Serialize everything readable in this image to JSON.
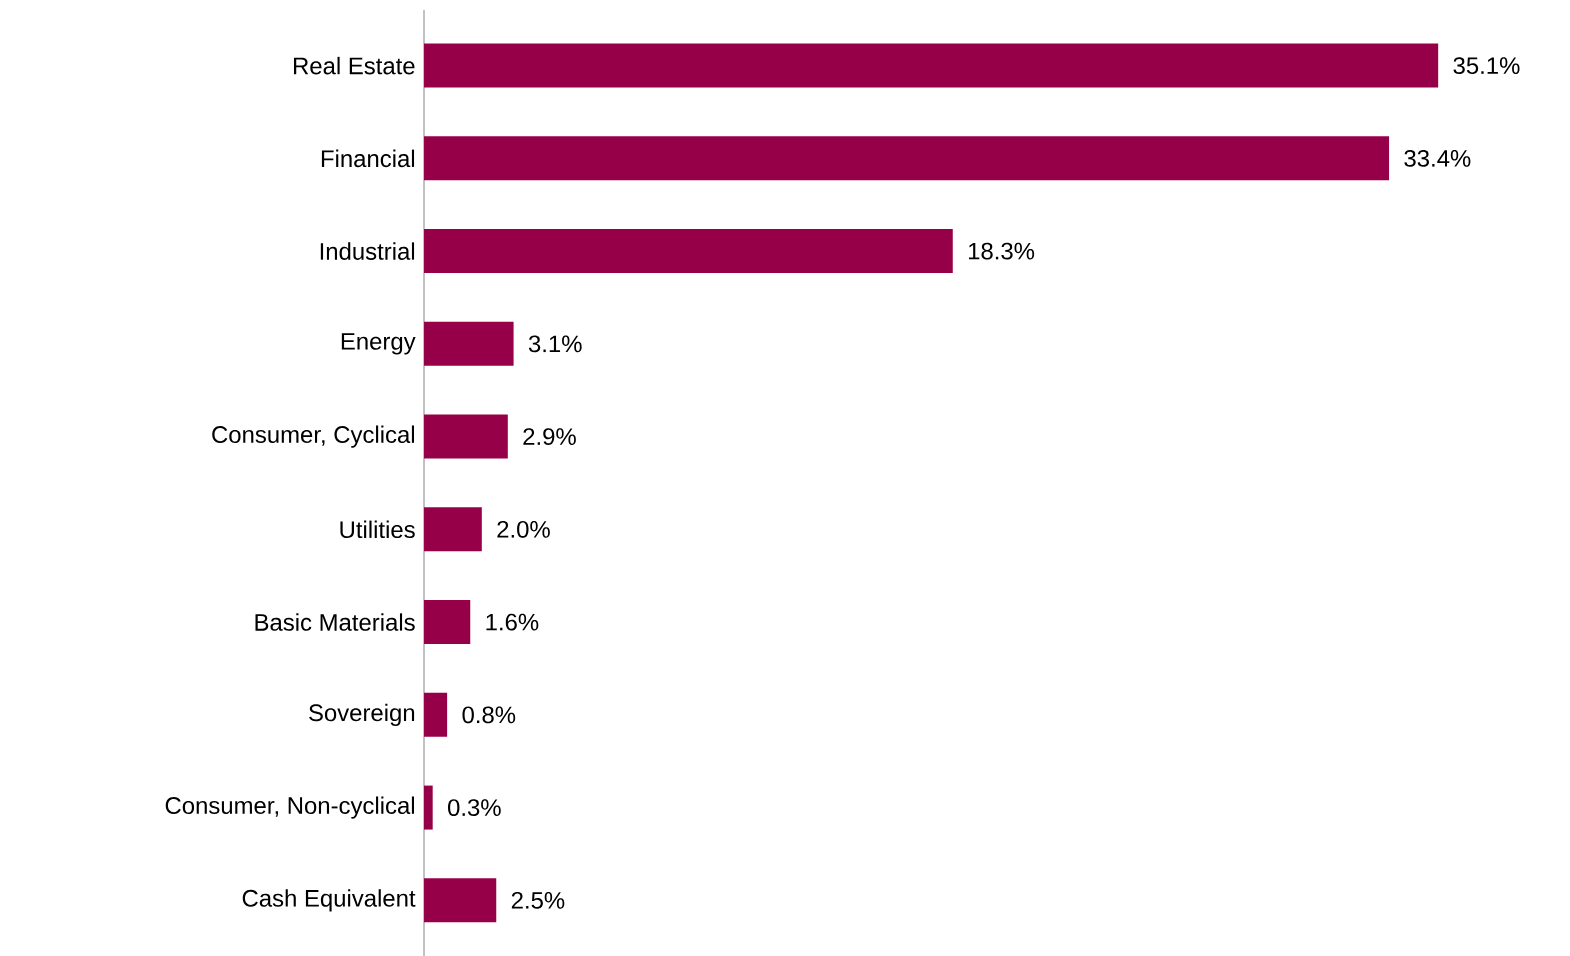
{
  "chart_data": {
    "type": "bar",
    "orientation": "horizontal",
    "color": "#960048",
    "categories": [
      "Real Estate",
      "Financial",
      "Industrial",
      "Energy",
      "Consumer, Cyclical",
      "Utilities",
      "Basic Materials",
      "Sovereign",
      "Consumer, Non-cyclical",
      "Cash Equivalent"
    ],
    "values": [
      35.1,
      33.4,
      18.3,
      3.1,
      2.9,
      2.0,
      1.6,
      0.8,
      0.3,
      2.5
    ],
    "value_labels": [
      "35.1%",
      "33.4%",
      "18.3%",
      "3.1%",
      "2.9%",
      "2.0%",
      "1.6%",
      "0.8%",
      "0.3%",
      "2.5%"
    ]
  }
}
